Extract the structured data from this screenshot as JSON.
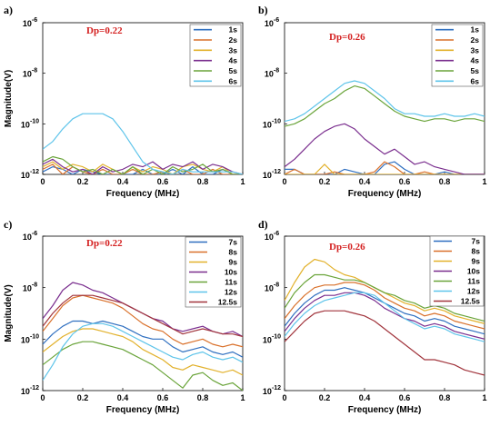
{
  "colors": [
    "#2f6fc0",
    "#d9702a",
    "#e2b12b",
    "#7a2e8e",
    "#6aa43a",
    "#5ec4ea",
    "#a1343c"
  ],
  "chart_data": [
    {
      "id": "a",
      "type": "line",
      "panel_label": "a)",
      "annotation": "Dp=0.22",
      "xlabel": "Frequency (MHz)",
      "ylabel": "Magnitude(V)",
      "xlim": [
        0,
        1
      ],
      "ylim_log10": [
        -12,
        -6
      ],
      "yscale": "log",
      "x_ticks": [
        "0",
        "0.2",
        "0.4",
        "0.6",
        "0.8",
        "1"
      ],
      "y_ticks": [
        "10",
        "10",
        "10",
        "10"
      ],
      "y_tick_exponents": [
        "-12",
        "-10",
        "-8",
        "-6"
      ],
      "legend_position": "top-right",
      "x": [
        0,
        0.05,
        0.1,
        0.15,
        0.2,
        0.25,
        0.3,
        0.35,
        0.4,
        0.45,
        0.5,
        0.55,
        0.6,
        0.65,
        0.7,
        0.75,
        0.8,
        0.85,
        0.9,
        0.95,
        1.0
      ],
      "series": [
        {
          "name": "1s",
          "log10_values": [
            -11.9,
            -11.7,
            -11.8,
            -12.0,
            -11.8,
            -11.9,
            -12.0,
            -12.0,
            -12.0,
            -12.0,
            -11.8,
            -12.0,
            -12.0,
            -11.8,
            -12.0,
            -11.7,
            -12.0,
            -12.0,
            -11.8,
            -12.0,
            -12.0
          ]
        },
        {
          "name": "2s",
          "log10_values": [
            -11.8,
            -11.6,
            -12.0,
            -11.7,
            -11.9,
            -12.0,
            -11.8,
            -12.0,
            -12.0,
            -11.8,
            -12.0,
            -12.0,
            -11.9,
            -12.0,
            -11.8,
            -12.0,
            -12.0,
            -11.8,
            -12.0,
            -12.0,
            -12.0
          ]
        },
        {
          "name": "3s",
          "log10_values": [
            -11.7,
            -11.5,
            -11.8,
            -11.6,
            -11.7,
            -11.9,
            -11.6,
            -11.8,
            -12.0,
            -11.7,
            -11.9,
            -11.7,
            -11.8,
            -12.0,
            -11.7,
            -11.6,
            -11.8,
            -11.9,
            -11.7,
            -12.0,
            -12.0
          ]
        },
        {
          "name": "4s",
          "log10_values": [
            -11.6,
            -11.4,
            -11.7,
            -11.9,
            -11.8,
            -12.0,
            -11.7,
            -11.9,
            -11.8,
            -11.6,
            -11.7,
            -11.5,
            -11.8,
            -11.6,
            -11.7,
            -11.5,
            -11.8,
            -11.6,
            -11.7,
            -11.9,
            -12.0
          ]
        },
        {
          "name": "5s",
          "log10_values": [
            -11.5,
            -11.3,
            -11.4,
            -11.7,
            -11.9,
            -11.8,
            -12.0,
            -11.8,
            -12.0,
            -11.7,
            -12.0,
            -11.8,
            -12.0,
            -11.7,
            -11.9,
            -11.8,
            -11.6,
            -11.9,
            -11.8,
            -12.0,
            -12.0
          ]
        },
        {
          "name": "6s",
          "log10_values": [
            -11.0,
            -10.7,
            -10.2,
            -9.8,
            -9.6,
            -9.6,
            -9.6,
            -9.8,
            -10.3,
            -10.9,
            -11.5,
            -11.8,
            -11.9,
            -12.0,
            -11.8,
            -11.9,
            -11.9,
            -11.9,
            -11.9,
            -11.9,
            -12.0
          ]
        }
      ]
    },
    {
      "id": "b",
      "type": "line",
      "panel_label": "b)",
      "annotation": "Dp=0.26",
      "xlabel": "Frequency (MHz)",
      "ylabel": "",
      "xlim": [
        0,
        1
      ],
      "ylim_log10": [
        -12,
        -6
      ],
      "yscale": "log",
      "x_ticks": [
        "0",
        "0.2",
        "0.4",
        "0.6",
        "0.8",
        "1"
      ],
      "y_ticks": [
        "10",
        "10",
        "10",
        "10"
      ],
      "y_tick_exponents": [
        "-12",
        "-10",
        "-8",
        "-6"
      ],
      "legend_position": "top-right",
      "x": [
        0,
        0.05,
        0.1,
        0.15,
        0.2,
        0.25,
        0.3,
        0.35,
        0.4,
        0.45,
        0.5,
        0.55,
        0.6,
        0.65,
        0.7,
        0.75,
        0.8,
        0.85,
        0.9,
        0.95,
        1.0
      ],
      "series": [
        {
          "name": "1s",
          "log10_values": [
            -11.8,
            -11.8,
            -12.0,
            -12.0,
            -12.0,
            -12.0,
            -11.8,
            -11.9,
            -12.0,
            -12.0,
            -11.6,
            -11.5,
            -11.8,
            -12.0,
            -12.0,
            -12.0,
            -11.9,
            -12.0,
            -12.0,
            -12.0,
            -12.0
          ]
        },
        {
          "name": "2s",
          "log10_values": [
            -12.0,
            -11.8,
            -12.0,
            -12.0,
            -12.0,
            -11.9,
            -12.0,
            -12.0,
            -12.0,
            -11.9,
            -11.5,
            -11.7,
            -12.0,
            -12.0,
            -11.9,
            -12.0,
            -12.0,
            -12.0,
            -12.0,
            -12.0,
            -12.0
          ]
        },
        {
          "name": "3s",
          "log10_values": [
            -12.0,
            -12.0,
            -12.0,
            -12.0,
            -11.6,
            -12.0,
            -12.0,
            -12.0,
            -12.0,
            -12.0,
            -12.0,
            -12.0,
            -12.0,
            -12.0,
            -12.0,
            -12.0,
            -12.0,
            -12.0,
            -12.0,
            -12.0,
            -12.0
          ]
        },
        {
          "name": "4s",
          "log10_values": [
            -11.7,
            -11.4,
            -11.0,
            -10.6,
            -10.3,
            -10.1,
            -10.0,
            -10.2,
            -10.6,
            -10.9,
            -11.2,
            -11.0,
            -11.3,
            -11.6,
            -11.5,
            -11.7,
            -11.8,
            -11.9,
            -12.0,
            -12.0,
            -12.0
          ]
        },
        {
          "name": "5s",
          "log10_values": [
            -10.1,
            -10.0,
            -9.8,
            -9.5,
            -9.2,
            -9.0,
            -8.7,
            -8.5,
            -8.6,
            -8.9,
            -9.2,
            -9.5,
            -9.7,
            -9.8,
            -9.9,
            -9.8,
            -9.8,
            -9.9,
            -9.8,
            -9.8,
            -9.9
          ]
        },
        {
          "name": "6s",
          "log10_values": [
            -9.9,
            -9.8,
            -9.6,
            -9.3,
            -9.0,
            -8.7,
            -8.4,
            -8.3,
            -8.4,
            -8.7,
            -9.0,
            -9.4,
            -9.6,
            -9.6,
            -9.7,
            -9.7,
            -9.6,
            -9.7,
            -9.7,
            -9.6,
            -9.7
          ]
        }
      ]
    },
    {
      "id": "c",
      "type": "line",
      "panel_label": "c)",
      "annotation": "Dp=0.22",
      "xlabel": "Frequency (MHz)",
      "ylabel": "Magnitude(V)",
      "xlim": [
        0,
        1
      ],
      "ylim_log10": [
        -12,
        -6
      ],
      "yscale": "log",
      "x_ticks": [
        "0",
        "0.2",
        "0.4",
        "0.6",
        "0.8",
        "1"
      ],
      "y_ticks": [
        "10",
        "10",
        "10",
        "10"
      ],
      "y_tick_exponents": [
        "-12",
        "-10",
        "-8",
        "-6"
      ],
      "legend_position": "top-right",
      "x": [
        0,
        0.05,
        0.1,
        0.15,
        0.2,
        0.25,
        0.3,
        0.35,
        0.4,
        0.45,
        0.5,
        0.55,
        0.6,
        0.65,
        0.7,
        0.75,
        0.8,
        0.85,
        0.9,
        0.95,
        1.0
      ],
      "series": [
        {
          "name": "7s",
          "log10_values": [
            -10.2,
            -9.8,
            -9.5,
            -9.3,
            -9.3,
            -9.4,
            -9.3,
            -9.4,
            -9.5,
            -9.7,
            -9.9,
            -10.0,
            -10.0,
            -10.3,
            -10.5,
            -10.4,
            -10.3,
            -10.5,
            -10.6,
            -10.5,
            -10.7
          ]
        },
        {
          "name": "8s",
          "log10_values": [
            -9.7,
            -9.2,
            -8.7,
            -8.4,
            -8.3,
            -8.4,
            -8.5,
            -8.6,
            -8.8,
            -9.1,
            -9.4,
            -9.6,
            -9.7,
            -10.0,
            -10.2,
            -10.1,
            -10.0,
            -10.2,
            -10.3,
            -10.2,
            -10.3
          ]
        },
        {
          "name": "9s",
          "log10_values": [
            -10.5,
            -10.2,
            -9.9,
            -9.7,
            -9.6,
            -9.6,
            -9.7,
            -9.8,
            -9.9,
            -10.1,
            -10.4,
            -10.6,
            -10.8,
            -11.1,
            -11.2,
            -11.0,
            -11.1,
            -11.2,
            -11.3,
            -11.2,
            -11.4
          ]
        },
        {
          "name": "10s",
          "log10_values": [
            -9.2,
            -8.7,
            -8.1,
            -7.8,
            -7.9,
            -8.1,
            -8.2,
            -8.4,
            -8.6,
            -8.8,
            -9.0,
            -9.2,
            -9.3,
            -9.6,
            -9.7,
            -9.6,
            -9.5,
            -9.7,
            -9.8,
            -9.7,
            -9.9
          ]
        },
        {
          "name": "11s",
          "log10_values": [
            -11.0,
            -10.7,
            -10.4,
            -10.2,
            -10.1,
            -10.1,
            -10.2,
            -10.3,
            -10.4,
            -10.6,
            -10.8,
            -11.0,
            -11.3,
            -11.6,
            -11.9,
            -11.4,
            -11.3,
            -11.6,
            -11.8,
            -11.7,
            -12.0
          ]
        },
        {
          "name": "12s",
          "log10_values": [
            -11.6,
            -11.0,
            -10.3,
            -9.8,
            -9.5,
            -9.4,
            -9.4,
            -9.5,
            -9.7,
            -9.9,
            -10.1,
            -10.3,
            -10.5,
            -10.7,
            -10.8,
            -10.6,
            -10.5,
            -10.7,
            -10.8,
            -10.7,
            -10.9
          ]
        },
        {
          "name": "12.5s",
          "log10_values": [
            -9.5,
            -9.0,
            -8.6,
            -8.3,
            -8.3,
            -8.3,
            -8.4,
            -8.5,
            -8.6,
            -8.8,
            -9.0,
            -9.2,
            -9.4,
            -9.6,
            -9.8,
            -9.7,
            -9.6,
            -9.7,
            -9.8,
            -9.8,
            -9.9
          ]
        }
      ]
    },
    {
      "id": "d",
      "type": "line",
      "panel_label": "d)",
      "annotation": "Dp=0.26",
      "xlabel": "Frequency (MHz)",
      "ylabel": "",
      "xlim": [
        0,
        1
      ],
      "ylim_log10": [
        -12,
        -6
      ],
      "yscale": "log",
      "x_ticks": [
        "0",
        "0.2",
        "0.4",
        "0.6",
        "0.8",
        "1"
      ],
      "y_ticks": [
        "10",
        "10",
        "10",
        "10"
      ],
      "y_tick_exponents": [
        "-12",
        "-10",
        "-8",
        "-6"
      ],
      "legend_position": "top-right",
      "x": [
        0,
        0.05,
        0.1,
        0.15,
        0.2,
        0.25,
        0.3,
        0.35,
        0.4,
        0.45,
        0.5,
        0.55,
        0.6,
        0.65,
        0.7,
        0.75,
        0.8,
        0.85,
        0.9,
        0.95,
        1.0
      ],
      "series": [
        {
          "name": "7s",
          "log10_values": [
            -9.5,
            -9.0,
            -8.6,
            -8.3,
            -8.1,
            -8.1,
            -8.0,
            -8.1,
            -8.2,
            -8.4,
            -8.6,
            -8.8,
            -9.0,
            -9.1,
            -9.3,
            -9.2,
            -9.3,
            -9.5,
            -9.6,
            -9.7,
            -9.8
          ]
        },
        {
          "name": "8s",
          "log10_values": [
            -9.2,
            -8.7,
            -8.3,
            -8.0,
            -7.9,
            -7.9,
            -7.8,
            -7.8,
            -7.9,
            -8.1,
            -8.4,
            -8.6,
            -8.8,
            -8.9,
            -9.1,
            -9.0,
            -9.1,
            -9.3,
            -9.4,
            -9.5,
            -9.6
          ]
        },
        {
          "name": "9s",
          "log10_values": [
            -8.5,
            -7.8,
            -7.2,
            -6.9,
            -7.0,
            -7.3,
            -7.5,
            -7.6,
            -7.8,
            -8.0,
            -8.2,
            -8.4,
            -8.6,
            -8.7,
            -8.9,
            -8.8,
            -8.9,
            -9.1,
            -9.2,
            -9.3,
            -9.4
          ]
        },
        {
          "name": "10s",
          "log10_values": [
            -9.7,
            -9.2,
            -8.8,
            -8.5,
            -8.3,
            -8.3,
            -8.2,
            -8.2,
            -8.3,
            -8.5,
            -8.8,
            -9.0,
            -9.2,
            -9.3,
            -9.5,
            -9.4,
            -9.5,
            -9.7,
            -9.8,
            -9.9,
            -10.0
          ]
        },
        {
          "name": "11s",
          "log10_values": [
            -8.8,
            -8.2,
            -7.8,
            -7.5,
            -7.5,
            -7.6,
            -7.7,
            -7.7,
            -7.8,
            -8.0,
            -8.2,
            -8.3,
            -8.5,
            -8.6,
            -8.8,
            -8.7,
            -8.8,
            -9.0,
            -9.1,
            -9.2,
            -9.3
          ]
        },
        {
          "name": "12s",
          "log10_values": [
            -9.9,
            -9.4,
            -9.0,
            -8.7,
            -8.5,
            -8.4,
            -8.3,
            -8.2,
            -8.2,
            -8.3,
            -8.6,
            -8.9,
            -9.2,
            -9.4,
            -9.6,
            -9.5,
            -9.6,
            -9.8,
            -9.9,
            -10.0,
            -10.1
          ]
        },
        {
          "name": "12.5s",
          "log10_values": [
            -10.1,
            -9.7,
            -9.3,
            -9.0,
            -8.9,
            -8.9,
            -8.9,
            -9.0,
            -9.1,
            -9.3,
            -9.6,
            -9.9,
            -10.2,
            -10.5,
            -10.8,
            -10.8,
            -10.9,
            -11.0,
            -11.2,
            -11.3,
            -11.4
          ]
        }
      ]
    }
  ]
}
